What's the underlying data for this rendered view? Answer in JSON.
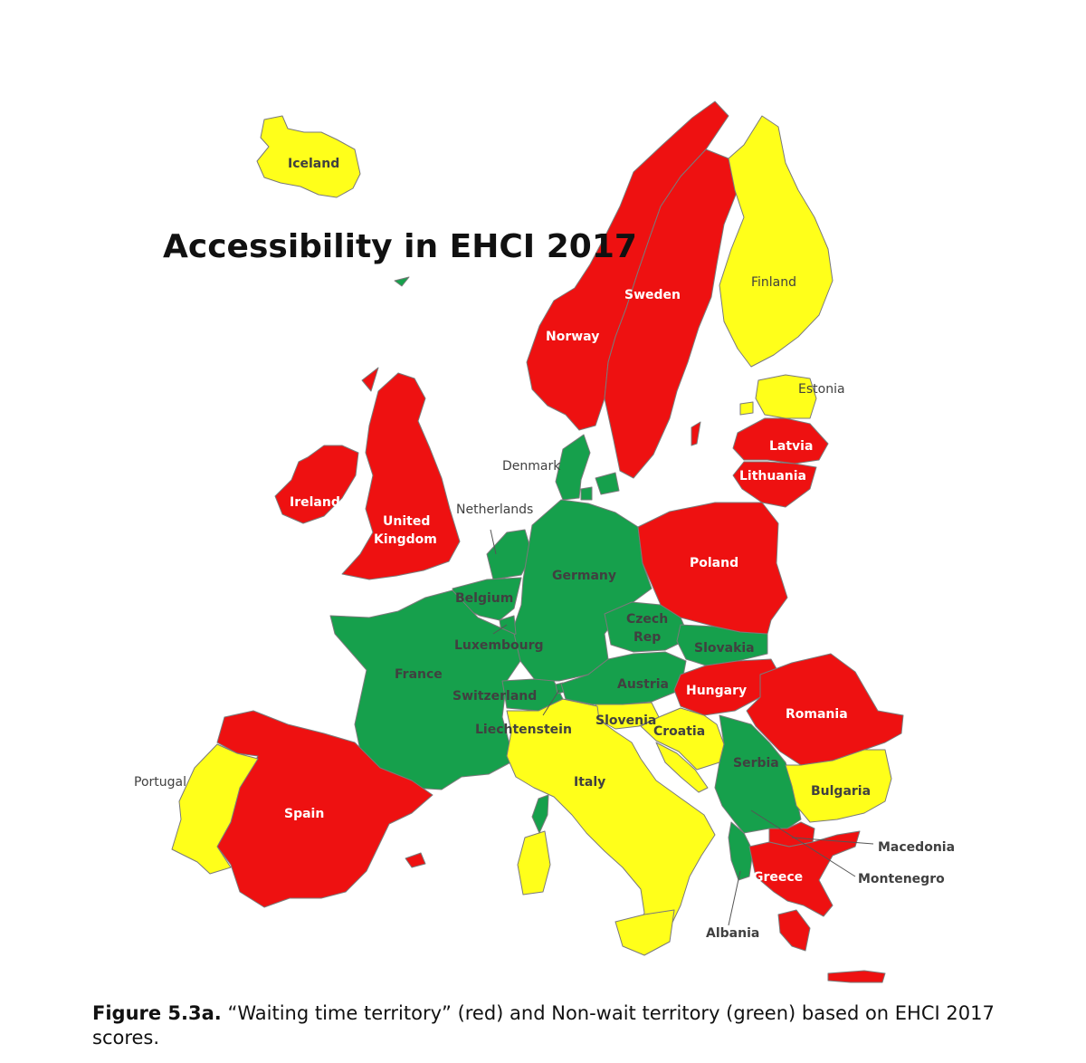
{
  "title": "Accessibility in EHCI 2017",
  "colors": {
    "red": "#ee1111",
    "green": "#16a04c",
    "yellow": "#ffff1a"
  },
  "labels": {
    "iceland": "Iceland",
    "norway": "Norway",
    "sweden": "Sweden",
    "finland": "Finland",
    "estonia": "Estonia",
    "latvia": "Latvia",
    "lithuania": "Lithuania",
    "denmark": "Denmark",
    "ireland": "Ireland",
    "uk_line1": "United",
    "uk_line2": "Kingdom",
    "netherlands": "Netherlands",
    "belgium": "Belgium",
    "luxembourg": "Luxembourg",
    "germany": "Germany",
    "poland": "Poland",
    "czech_line1": "Czech",
    "czech_line2": "Rep",
    "slovakia": "Slovakia",
    "france": "France",
    "switzerland": "Switzerland",
    "austria": "Austria",
    "hungary": "Hungary",
    "romania": "Romania",
    "liechtenstein": "Liechtenstein",
    "slovenia": "Slovenia",
    "croatia": "Croatia",
    "serbia": "Serbia",
    "portugal": "Portugal",
    "spain": "Spain",
    "italy": "Italy",
    "bulgaria": "Bulgaria",
    "macedonia": "Macedonia",
    "montenegro": "Montenegro",
    "greece": "Greece",
    "albania": "Albania"
  },
  "caption": {
    "figure": "Figure 5.3a.",
    "text": " “Waiting time territory” (red) and Non-wait territory (green) based on EHCI 2017 scores."
  }
}
